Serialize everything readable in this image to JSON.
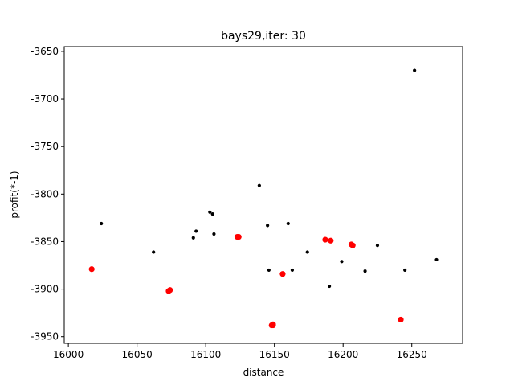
{
  "chart_data": {
    "type": "scatter",
    "title": "bays29,iter: 30",
    "xlabel": "distance",
    "ylabel": "profit(*-1)",
    "xlim": [
      15997,
      16287
    ],
    "ylim": [
      -3957,
      -3645
    ],
    "xticks": [
      16000,
      16050,
      16100,
      16150,
      16200,
      16250
    ],
    "yticks": [
      -3650,
      -3700,
      -3750,
      -3800,
      -3850,
      -3900,
      -3950
    ],
    "grid": false,
    "series": [
      {
        "color": "#000000",
        "marker": "small-dot",
        "points": [
          [
            16024,
            -3831
          ],
          [
            16062,
            -3861
          ],
          [
            16091,
            -3846
          ],
          [
            16093,
            -3839
          ],
          [
            16103,
            -3819
          ],
          [
            16105,
            -3821
          ],
          [
            16106,
            -3842
          ],
          [
            16139,
            -3791
          ],
          [
            16145,
            -3833
          ],
          [
            16146,
            -3880
          ],
          [
            16160,
            -3831
          ],
          [
            16163,
            -3880
          ],
          [
            16174,
            -3861
          ],
          [
            16190,
            -3897
          ],
          [
            16199,
            -3871
          ],
          [
            16216,
            -3881
          ],
          [
            16225,
            -3854
          ],
          [
            16245,
            -3880
          ],
          [
            16252,
            -3670
          ],
          [
            16268,
            -3869
          ]
        ]
      },
      {
        "color": "#ff0000",
        "marker": "large-dot",
        "points": [
          [
            16017,
            -3879
          ],
          [
            16073,
            -3902
          ],
          [
            16074,
            -3901
          ],
          [
            16123,
            -3845
          ],
          [
            16124,
            -3845
          ],
          [
            16148,
            -3938
          ],
          [
            16149,
            -3938
          ],
          [
            16149,
            -3937
          ],
          [
            16156,
            -3884
          ],
          [
            16187,
            -3848
          ],
          [
            16191,
            -3849
          ],
          [
            16206,
            -3853
          ],
          [
            16207,
            -3854
          ],
          [
            16242,
            -3932
          ]
        ]
      }
    ]
  }
}
